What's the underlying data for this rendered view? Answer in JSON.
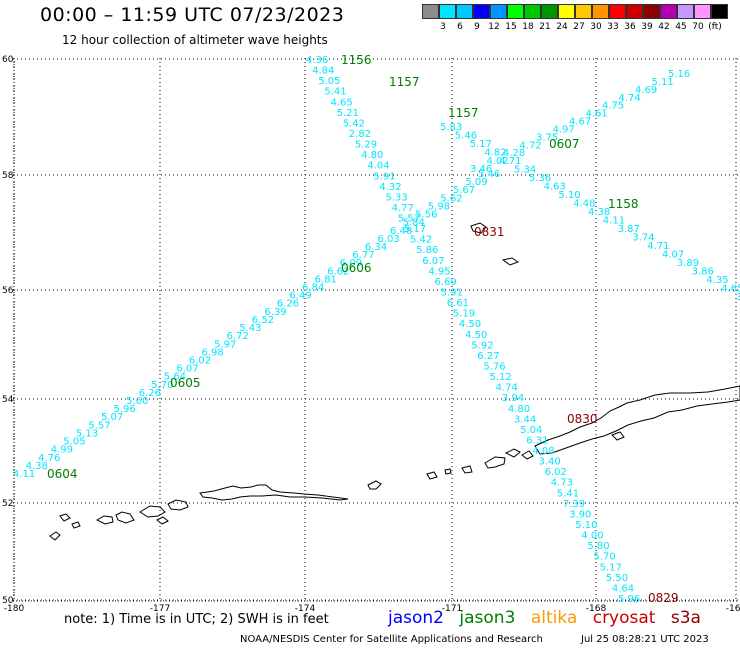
{
  "header": {
    "title": "00:00 – 11:59 UTC 07/23/2023",
    "subtitle": "12 hour collection of altimeter wave heights"
  },
  "legend": {
    "colors": [
      "#8c8c8c",
      "#00e5ff",
      "#00c8ff",
      "#0000ff",
      "#0096ff",
      "#00ff00",
      "#00c800",
      "#009600",
      "#ffff00",
      "#ffc800",
      "#ff9600",
      "#ff0000",
      "#c80000",
      "#8c0000",
      "#b400b4",
      "#c896ff",
      "#ff96ff",
      "#000000"
    ],
    "labels": [
      "3",
      "6",
      "9",
      "12",
      "15",
      "18",
      "21",
      "24",
      "27",
      "30",
      "33",
      "36",
      "39",
      "42",
      "45",
      "70",
      "(ft)"
    ]
  },
  "axes": {
    "lon_labels": [
      "-180",
      "-177",
      "-174",
      "-171",
      "-168",
      "-165"
    ],
    "lat_labels": [
      "60",
      "58",
      "56",
      "54",
      "52",
      "50"
    ]
  },
  "satellite_colors": {
    "jason2": "#0000ff",
    "jason3": "#008000",
    "altika": "#ff9900",
    "cryosat": "#cc0000",
    "s3a": "#8b0000"
  },
  "track_point_color": "#00e5ff",
  "tracks": {
    "track_0604": [
      "4.11",
      "4.38",
      "4.76",
      "4.99",
      "5.05",
      "5.13",
      "5.57",
      "5.07",
      "5.96",
      "5.60",
      "6.26",
      "5.70",
      "5.64",
      "6.07",
      "6.02",
      "6.98",
      "5.97",
      "6.72",
      "5.43",
      "6.52",
      "6.39",
      "6.26",
      "6.49",
      "6.84",
      "6.81",
      "6.62",
      "6.09",
      "6.77",
      "6.34",
      "6.03",
      "6.48",
      "5.84",
      "5.56",
      "5.98",
      "5.62",
      "5.67",
      "5.09",
      "5.46"
    ],
    "track_1157": [
      "4.36",
      "4.84",
      "5.05",
      "5.41",
      "4.65",
      "5.21",
      "5.42",
      "2.82",
      "5.29",
      "4.80",
      "4.04",
      "5.91",
      "4.32",
      "5.33",
      "4.77",
      "5.57",
      "5.17",
      "5.42",
      "5.86",
      "6.07",
      "4.95",
      "6.69",
      "5.91",
      "6.61",
      "5.19",
      "4.50",
      "4.50",
      "5.92",
      "6.27",
      "5.76",
      "5.12",
      "4.74",
      "3.94",
      "4.80",
      "3.44",
      "5.04",
      "6.31",
      "4.08",
      "3.40",
      "6.02",
      "4.73",
      "5.41",
      "7.39",
      "3.90",
      "5.10",
      "4.00",
      "5.80",
      "5.70",
      "5.17",
      "5.50",
      "4.64",
      "5.96"
    ],
    "track_0607": [
      "5.16",
      "5.11",
      "4.69",
      "4.74",
      "4.75",
      "4.61",
      "4.67",
      "4.97",
      "3.75",
      "4.72",
      "4.28",
      "4.02",
      "3.46"
    ],
    "track_1158": [
      "5.83",
      "5.46",
      "5.17",
      "4.82",
      "4.71",
      "5.34",
      "5.36",
      "4.63",
      "5.10",
      "4.48",
      "4.38",
      "4.11",
      "3.87",
      "3.74",
      "4.71",
      "4.07",
      "3.89",
      "3.86",
      "4.35",
      "4.65",
      "3.76"
    ]
  },
  "time_labels": [
    {
      "text": "1156",
      "sat": "jason3"
    },
    {
      "text": "1157",
      "sat": "jason3"
    },
    {
      "text": "1157",
      "sat": "jason3"
    },
    {
      "text": "0607",
      "sat": "jason3"
    },
    {
      "text": "1158",
      "sat": "jason3"
    },
    {
      "text": "0606",
      "sat": "jason3"
    },
    {
      "text": "0605",
      "sat": "jason3"
    },
    {
      "text": "0604",
      "sat": "jason3"
    },
    {
      "text": "0831",
      "sat": "s3a"
    },
    {
      "text": "0830",
      "sat": "s3a"
    },
    {
      "text": "0829",
      "sat": "s3a"
    }
  ],
  "footer": {
    "note": "note: 1) Time is in UTC; 2) SWH is in feet",
    "satellites": [
      "jason2",
      "jason3",
      "altika",
      "cryosat",
      "s3a"
    ],
    "credit": "NOAA/NESDIS Center for Satellite Applications and Research",
    "timestamp": "Jul 25 08:28:21 UTC 2023"
  }
}
